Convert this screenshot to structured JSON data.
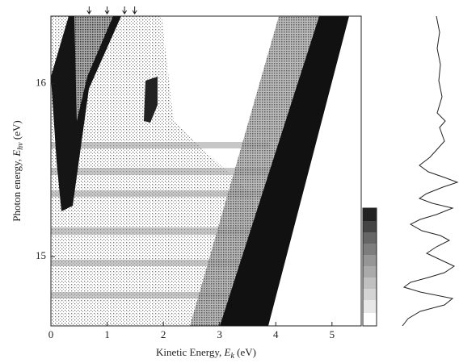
{
  "chart_data": {
    "type": "image-map",
    "xlabel_parts": [
      "Kinetic Energy, ",
      "E",
      "k",
      " (eV)"
    ],
    "ylabel_parts": [
      "Photon energy, ",
      "E",
      "hν",
      " (eV)"
    ],
    "xlim": [
      0,
      5.52
    ],
    "ylim": [
      14.6,
      16.39
    ],
    "xticks": [
      0,
      1,
      2,
      3,
      4,
      5
    ],
    "yticks": [
      15,
      16
    ],
    "arrow_markers_x": [
      0.68,
      1.0,
      1.31,
      1.49
    ],
    "colormap": "gray"
  }
}
